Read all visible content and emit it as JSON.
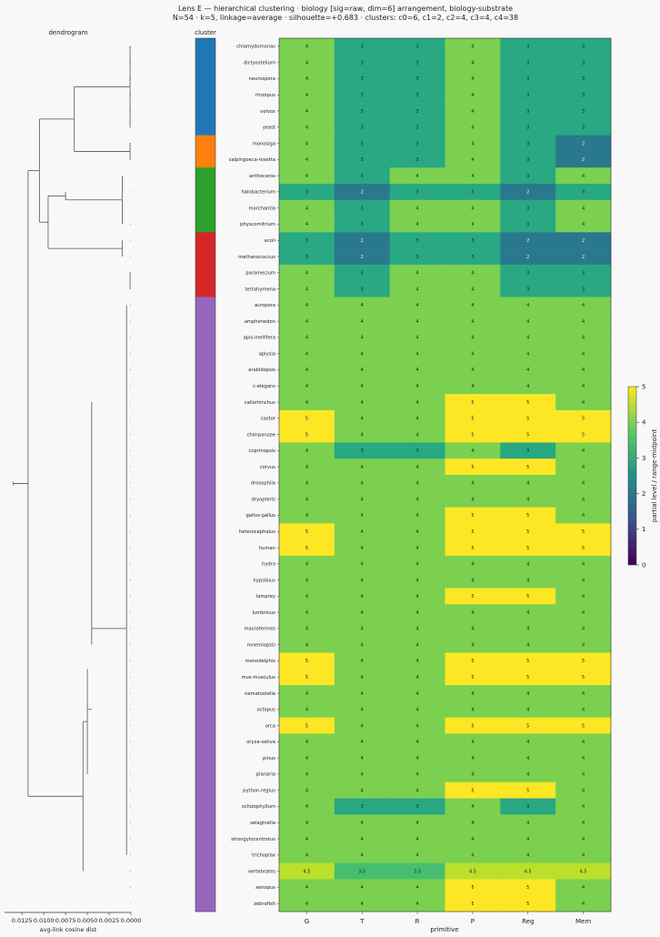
{
  "chart_data": {
    "type": "heatmap",
    "title": "Lens E — hierarchical clustering · biology [sig=raw, dim=6] arrangement, biology-substrate",
    "subtitle": "N=54 · k=5, linkage=average · silhouette=+0.683 · clusters: c0=6, c1=2, c2=4, c3=4, c4=38",
    "xlabel": "primitive",
    "columns": [
      "G",
      "T",
      "R",
      "P",
      "Reg",
      "Mem"
    ],
    "rows": [
      "chlamydomonas",
      "dictyostelium",
      "neurospora",
      "rhizopus",
      "volvox",
      "yeast",
      "monosiga",
      "salpingoeca-rosetta",
      "anthoceros",
      "halobacterium",
      "marchantia",
      "physcomitrium",
      "ecoli",
      "methanococcus",
      "paramecium",
      "tetrahymena",
      "acropora",
      "amphimedon",
      "apis-mellifera",
      "aplysia",
      "arabidopsis",
      "c-elegans",
      "callorhinchus",
      "castor",
      "chimpanzee",
      "coprinopsis",
      "corvus",
      "drosophila",
      "dryopteris",
      "gallus-gallus",
      "heterocephalus",
      "human",
      "hydra",
      "hypsibius",
      "lamprey",
      "lumbricus",
      "macrotermes",
      "mnemiopsis",
      "monodelphis",
      "mus-musculus",
      "nematostella",
      "octopus",
      "orca",
      "oryza-sativa",
      "pinus",
      "planaria",
      "python-regius",
      "schizophyllum",
      "selaginella",
      "strongylocentrotus",
      "trichoplax",
      "vertebrates",
      "xenopus",
      "zebrafish"
    ],
    "values": [
      [
        4,
        3,
        3,
        4,
        3,
        3
      ],
      [
        4,
        3,
        3,
        4,
        3,
        3
      ],
      [
        4,
        3,
        3,
        4,
        3,
        3
      ],
      [
        4,
        3,
        3,
        4,
        3,
        3
      ],
      [
        4,
        3,
        3,
        4,
        3,
        3
      ],
      [
        4,
        3,
        3,
        4,
        3,
        3
      ],
      [
        4,
        3,
        3,
        4,
        3,
        2
      ],
      [
        4,
        3,
        3,
        4,
        3,
        2
      ],
      [
        4,
        3,
        4,
        4,
        3,
        4
      ],
      [
        3,
        2,
        3,
        3,
        2,
        3
      ],
      [
        4,
        3,
        4,
        4,
        3,
        4
      ],
      [
        4,
        3,
        4,
        4,
        3,
        4
      ],
      [
        3,
        2,
        3,
        3,
        2,
        2
      ],
      [
        3,
        2,
        3,
        3,
        2,
        2
      ],
      [
        4,
        3,
        4,
        4,
        3,
        3
      ],
      [
        4,
        3,
        4,
        4,
        3,
        3
      ],
      [
        4,
        4,
        4,
        4,
        4,
        4
      ],
      [
        4,
        4,
        4,
        4,
        4,
        4
      ],
      [
        4,
        4,
        4,
        4,
        4,
        4
      ],
      [
        4,
        4,
        4,
        4,
        4,
        4
      ],
      [
        4,
        4,
        4,
        4,
        4,
        4
      ],
      [
        4,
        4,
        4,
        4,
        4,
        4
      ],
      [
        4,
        4,
        4,
        5,
        5,
        4
      ],
      [
        5,
        4,
        4,
        5,
        5,
        5
      ],
      [
        5,
        4,
        4,
        5,
        5,
        5
      ],
      [
        4,
        3,
        3,
        4,
        3,
        4
      ],
      [
        4,
        4,
        4,
        5,
        5,
        4
      ],
      [
        4,
        4,
        4,
        4,
        4,
        4
      ],
      [
        4,
        4,
        4,
        4,
        4,
        4
      ],
      [
        4,
        4,
        4,
        5,
        5,
        4
      ],
      [
        5,
        4,
        4,
        5,
        5,
        5
      ],
      [
        5,
        4,
        4,
        5,
        5,
        5
      ],
      [
        4,
        4,
        4,
        4,
        4,
        4
      ],
      [
        4,
        4,
        4,
        4,
        4,
        4
      ],
      [
        4,
        4,
        4,
        5,
        5,
        4
      ],
      [
        4,
        4,
        4,
        4,
        4,
        4
      ],
      [
        4,
        4,
        4,
        4,
        4,
        4
      ],
      [
        4,
        4,
        4,
        4,
        4,
        4
      ],
      [
        5,
        4,
        4,
        5,
        5,
        5
      ],
      [
        5,
        4,
        4,
        5,
        5,
        5
      ],
      [
        4,
        4,
        4,
        4,
        4,
        4
      ],
      [
        4,
        4,
        4,
        4,
        4,
        4
      ],
      [
        5,
        4,
        4,
        5,
        5,
        5
      ],
      [
        4,
        4,
        4,
        4,
        4,
        4
      ],
      [
        4,
        4,
        4,
        4,
        4,
        4
      ],
      [
        4,
        4,
        4,
        4,
        4,
        4
      ],
      [
        4,
        4,
        4,
        5,
        5,
        4
      ],
      [
        4,
        3,
        3,
        4,
        3,
        4
      ],
      [
        4,
        4,
        4,
        4,
        4,
        4
      ],
      [
        4,
        4,
        4,
        4,
        4,
        4
      ],
      [
        4,
        4,
        4,
        4,
        4,
        4
      ],
      [
        4.5,
        3.5,
        3.5,
        4.5,
        4.5,
        4.5
      ],
      [
        4,
        4,
        4,
        5,
        5,
        4
      ],
      [
        4,
        4,
        4,
        5,
        5,
        4
      ]
    ],
    "cell_labels": [
      [
        "4",
        "3",
        "3",
        "4",
        "3",
        "3"
      ],
      [
        "4",
        "3",
        "3",
        "4",
        "3",
        "3"
      ],
      [
        "4",
        "3",
        "3",
        "4",
        "3",
        "3"
      ],
      [
        "4",
        "3",
        "3",
        "4",
        "3",
        "3"
      ],
      [
        "4",
        "3",
        "3",
        "4",
        "3",
        "3"
      ],
      [
        "4",
        "3",
        "3",
        "4",
        "3",
        "3"
      ],
      [
        "4",
        "3",
        "3",
        "4",
        "3",
        "2"
      ],
      [
        "4",
        "3",
        "3",
        "4",
        "3",
        "2"
      ],
      [
        "4",
        "3",
        "4",
        "4",
        "3",
        "4"
      ],
      [
        "3",
        "2",
        "3",
        "3",
        "2",
        "3"
      ],
      [
        "4",
        "3",
        "4",
        "4",
        "3",
        "4"
      ],
      [
        "4",
        "3",
        "4",
        "4",
        "3",
        "4"
      ],
      [
        "3",
        "2",
        "3",
        "3",
        "2",
        "2"
      ],
      [
        "3",
        "2",
        "3",
        "3",
        "2",
        "2"
      ],
      [
        "4",
        "3",
        "4",
        "4",
        "3",
        "3"
      ],
      [
        "4",
        "3",
        "4",
        "4",
        "3",
        "3"
      ],
      [
        "4",
        "4",
        "4",
        "4",
        "4",
        "4"
      ],
      [
        "4",
        "4",
        "4",
        "4",
        "4",
        "4"
      ],
      [
        "4",
        "4",
        "4",
        "4",
        "4",
        "4"
      ],
      [
        "4",
        "4",
        "4",
        "4",
        "4",
        "4"
      ],
      [
        "4",
        "4",
        "4",
        "4",
        "4",
        "4"
      ],
      [
        "4",
        "4",
        "4",
        "4",
        "4",
        "4"
      ],
      [
        "4",
        "4",
        "4",
        "5",
        "5",
        "4"
      ],
      [
        "5",
        "4",
        "4",
        "5",
        "5",
        "5"
      ],
      [
        "5",
        "4",
        "4",
        "5",
        "5",
        "5"
      ],
      [
        "4",
        "3",
        "3",
        "4",
        "3",
        "4"
      ],
      [
        "4",
        "4",
        "4",
        "5",
        "5",
        "4"
      ],
      [
        "4",
        "4",
        "4",
        "4",
        "4",
        "4"
      ],
      [
        "4",
        "4",
        "4",
        "4",
        "4",
        "4"
      ],
      [
        "4",
        "4",
        "4",
        "5",
        "5",
        "4"
      ],
      [
        "5",
        "4",
        "4",
        "5",
        "5",
        "5"
      ],
      [
        "5",
        "4",
        "4",
        "5",
        "5",
        "5"
      ],
      [
        "4",
        "4",
        "4",
        "4",
        "4",
        "4"
      ],
      [
        "4",
        "4",
        "4",
        "4",
        "4",
        "4"
      ],
      [
        "4",
        "4",
        "4",
        "5",
        "5",
        "4"
      ],
      [
        "4",
        "4",
        "4",
        "4",
        "4",
        "4"
      ],
      [
        "4",
        "4",
        "4",
        "4",
        "4",
        "4"
      ],
      [
        "4",
        "4",
        "4",
        "4",
        "4",
        "4"
      ],
      [
        "5",
        "4",
        "4",
        "5",
        "5",
        "5"
      ],
      [
        "5",
        "4",
        "4",
        "5",
        "5",
        "5"
      ],
      [
        "4",
        "4",
        "4",
        "4",
        "4",
        "4"
      ],
      [
        "4",
        "4",
        "4",
        "4",
        "4",
        "4"
      ],
      [
        "5",
        "4",
        "4",
        "5",
        "5",
        "5"
      ],
      [
        "4",
        "4",
        "4",
        "4",
        "4",
        "4"
      ],
      [
        "4",
        "4",
        "4",
        "4",
        "4",
        "4"
      ],
      [
        "4",
        "4",
        "4",
        "4",
        "4",
        "4"
      ],
      [
        "4",
        "4",
        "4",
        "5",
        "5",
        "4"
      ],
      [
        "4",
        "3",
        "3",
        "4",
        "3",
        "4"
      ],
      [
        "4",
        "4",
        "4",
        "4",
        "4",
        "4"
      ],
      [
        "4",
        "4",
        "4",
        "4",
        "4",
        "4"
      ],
      [
        "4",
        "4",
        "4",
        "4",
        "4",
        "4"
      ],
      [
        "4.5",
        "3.5",
        "3.5",
        "4.5",
        "4.5",
        "4.5"
      ],
      [
        "4",
        "4",
        "4",
        "5",
        "5",
        "4"
      ],
      [
        "4",
        "4",
        "4",
        "5",
        "5",
        "4"
      ]
    ],
    "colorbar": {
      "label": "partial level / range-midpoint",
      "range": [
        0,
        5
      ],
      "ticks": [
        "0",
        "1",
        "2",
        "3",
        "4",
        "5"
      ],
      "colormap": "viridis"
    },
    "cluster_strip": {
      "title": "cluster",
      "groups": [
        {
          "name": "c0",
          "count": 6,
          "color": "#1f77b4"
        },
        {
          "name": "c1",
          "count": 2,
          "color": "#ff7f0e"
        },
        {
          "name": "c2",
          "count": 4,
          "color": "#2ca02c"
        },
        {
          "name": "c3",
          "count": 4,
          "color": "#d62728"
        },
        {
          "name": "c4",
          "count": 38,
          "color": "#9467bd"
        }
      ]
    },
    "dendrogram": {
      "title": "dendrogram",
      "xlabel": "avg-link cosine dist",
      "xlim": [
        0.0,
        0.0145
      ],
      "ticks": [
        "0.0125",
        "0.0100",
        "0.0075",
        "0.0050",
        "0.0025",
        "0.0000"
      ],
      "tick_values": [
        0.0125,
        0.01,
        0.0075,
        0.005,
        0.0025,
        0.0
      ]
    }
  }
}
